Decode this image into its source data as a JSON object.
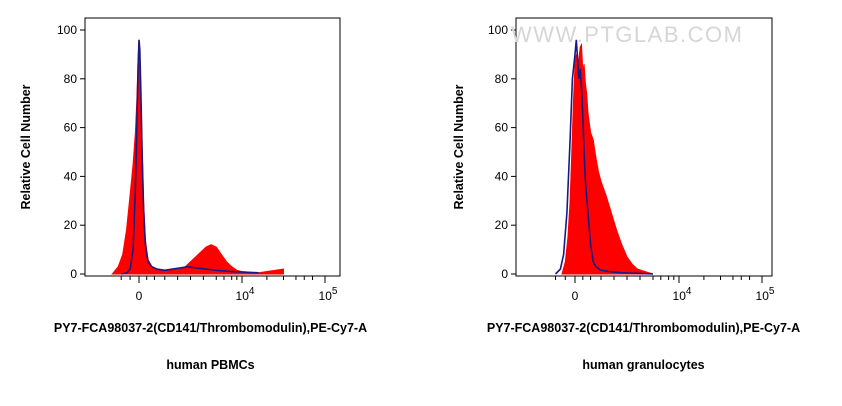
{
  "chart_data": [
    {
      "type": "area",
      "ylabel": "Relative Cell Number",
      "xlabel": "PY7-FCA98037-2(CD141/Thrombomodulin),PE-Cy7-A",
      "caption": "human PBMCs",
      "ylim": [
        0,
        100
      ],
      "y_ticks": [
        "0",
        "20",
        "40",
        "60",
        "80",
        "100"
      ],
      "x_ticks": [
        "0",
        "10^4",
        "10^5"
      ],
      "x_scale": "biexponential",
      "colors": {
        "filled": "#ff0000",
        "line": "#1a1a80"
      },
      "series": [
        {
          "style": "filled",
          "x": [
            -0.9,
            -0.7,
            -0.55,
            -0.42,
            -0.32,
            -0.2,
            -0.12,
            -0.07,
            -0.03,
            0.0,
            0.03,
            0.07,
            0.12,
            0.18,
            0.25,
            0.35,
            0.5,
            0.7,
            1.0,
            1.3,
            1.6,
            1.8,
            2.0,
            2.2,
            2.4,
            2.6,
            2.8,
            3.0,
            3.2,
            3.4,
            3.6,
            3.8,
            4.0,
            4.2,
            4.5
          ],
          "y": [
            0,
            3,
            8,
            18,
            30,
            45,
            58,
            72,
            88,
            96,
            90,
            75,
            52,
            30,
            14,
            6,
            3,
            2,
            1.5,
            1.5,
            2,
            3,
            5,
            7,
            9,
            11,
            12,
            11,
            8,
            5,
            3,
            1.5,
            1,
            0.5,
            2
          ]
        },
        {
          "style": "line",
          "x": [
            -0.6,
            -0.4,
            -0.3,
            -0.2,
            -0.12,
            -0.07,
            -0.03,
            0.0,
            0.03,
            0.07,
            0.12,
            0.18,
            0.25,
            0.35,
            0.5,
            0.7,
            1.0,
            1.3,
            1.6,
            1.9,
            2.2,
            2.6,
            3.0,
            3.6,
            4.2
          ],
          "y": [
            0,
            0.5,
            2,
            10,
            35,
            62,
            85,
            96,
            92,
            76,
            50,
            26,
            12,
            5,
            3,
            2,
            1.5,
            2,
            2.5,
            3,
            2.5,
            2,
            1.5,
            1,
            0.5
          ]
        }
      ]
    },
    {
      "type": "area",
      "ylabel": "Relative Cell Number",
      "xlabel": "PY7-FCA98037-2(CD141/Thrombomodulin),PE-Cy7-A",
      "caption": "human granulocytes",
      "watermark": "WWW.PTGLAB.COM",
      "ylim": [
        0,
        100
      ],
      "y_ticks": [
        "0",
        "20",
        "40",
        "60",
        "80",
        "100"
      ],
      "x_ticks": [
        "0",
        "10^4",
        "10^5"
      ],
      "x_scale": "biexponential",
      "colors": {
        "filled": "#ff0000",
        "line": "#1a1a80"
      },
      "series": [
        {
          "style": "filled",
          "x": [
            -0.4,
            -0.3,
            -0.22,
            -0.15,
            -0.1,
            -0.05,
            0.0,
            0.05,
            0.1,
            0.15,
            0.2,
            0.25,
            0.3,
            0.35,
            0.4,
            0.45,
            0.5,
            0.6,
            0.7,
            0.8,
            0.9,
            1.0,
            1.2,
            1.4,
            1.6,
            1.8,
            2.0,
            2.2,
            2.4,
            2.7,
            3.0
          ],
          "y": [
            0,
            5,
            15,
            30,
            50,
            70,
            86,
            90,
            84,
            88,
            93,
            94,
            83,
            86,
            78,
            74,
            66,
            58,
            55,
            48,
            42,
            38,
            32,
            25,
            18,
            12,
            7,
            4,
            2,
            1,
            0
          ]
        },
        {
          "style": "line",
          "x": [
            -0.6,
            -0.45,
            -0.35,
            -0.25,
            -0.15,
            -0.08,
            0.0,
            0.05,
            0.1,
            0.15,
            0.2,
            0.25,
            0.3,
            0.35,
            0.4,
            0.5,
            0.6,
            0.7,
            0.8,
            1.0,
            1.3,
            1.8,
            2.4,
            3.0
          ],
          "y": [
            0,
            2,
            8,
            25,
            55,
            80,
            90,
            96,
            88,
            80,
            84,
            76,
            65,
            50,
            38,
            25,
            12,
            5,
            3,
            1.5,
            1,
            0.5,
            0.3,
            0
          ]
        }
      ]
    }
  ]
}
